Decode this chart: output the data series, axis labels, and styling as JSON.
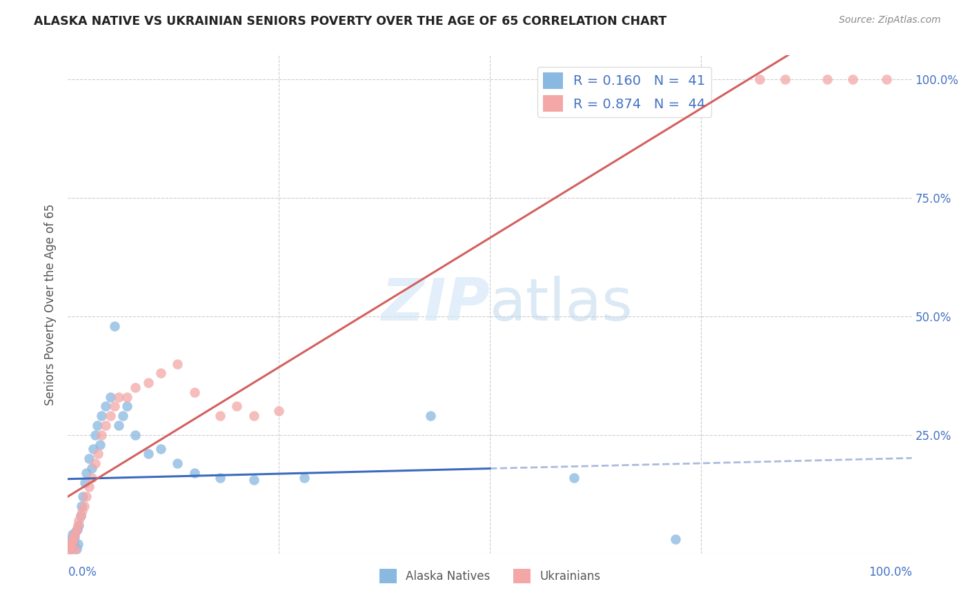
{
  "title": "ALASKA NATIVE VS UKRAINIAN SENIORS POVERTY OVER THE AGE OF 65 CORRELATION CHART",
  "source": "Source: ZipAtlas.com",
  "ylabel": "Seniors Poverty Over the Age of 65",
  "alaska_R": 0.16,
  "alaska_N": 41,
  "ukraine_R": 0.874,
  "ukraine_N": 44,
  "alaska_color": "#89b8e0",
  "ukraine_color": "#f4a7a7",
  "alaska_line_color": "#3a6abf",
  "ukraine_line_color": "#d45f5f",
  "dashed_line_color": "#aabbdd",
  "watermark_color": "#d0e4f5",
  "background_color": "#ffffff",
  "grid_color": "#cccccc",
  "title_color": "#222222",
  "axis_label_color": "#4472c4",
  "ylabel_color": "#555555",
  "legend_label_color": "#333355",
  "source_color": "#888888",
  "alaska_x": [
    0.002,
    0.003,
    0.004,
    0.005,
    0.006,
    0.007,
    0.008,
    0.009,
    0.01,
    0.011,
    0.012,
    0.013,
    0.015,
    0.016,
    0.018,
    0.02,
    0.022,
    0.025,
    0.028,
    0.03,
    0.032,
    0.035,
    0.038,
    0.04,
    0.045,
    0.05,
    0.055,
    0.06,
    0.065,
    0.07,
    0.08,
    0.095,
    0.11,
    0.13,
    0.15,
    0.18,
    0.22,
    0.28,
    0.43,
    0.6,
    0.72
  ],
  "alaska_y": [
    0.01,
    0.02,
    0.03,
    0.04,
    0.015,
    0.025,
    0.035,
    0.045,
    0.01,
    0.05,
    0.02,
    0.06,
    0.08,
    0.1,
    0.12,
    0.15,
    0.17,
    0.2,
    0.18,
    0.22,
    0.25,
    0.27,
    0.23,
    0.29,
    0.31,
    0.33,
    0.48,
    0.27,
    0.29,
    0.31,
    0.25,
    0.21,
    0.22,
    0.19,
    0.17,
    0.16,
    0.155,
    0.16,
    0.29,
    0.16,
    0.03
  ],
  "ukraine_x": [
    0.001,
    0.002,
    0.003,
    0.004,
    0.005,
    0.006,
    0.007,
    0.008,
    0.009,
    0.01,
    0.012,
    0.013,
    0.015,
    0.017,
    0.019,
    0.022,
    0.025,
    0.028,
    0.032,
    0.036,
    0.04,
    0.045,
    0.05,
    0.055,
    0.06,
    0.07,
    0.08,
    0.095,
    0.11,
    0.13,
    0.15,
    0.18,
    0.2,
    0.22,
    0.25,
    0.6,
    0.62,
    0.7,
    0.75,
    0.82,
    0.85,
    0.9,
    0.93,
    0.97
  ],
  "ukraine_y": [
    0.005,
    0.01,
    0.015,
    0.02,
    0.025,
    0.03,
    0.035,
    0.04,
    0.008,
    0.05,
    0.06,
    0.07,
    0.08,
    0.09,
    0.1,
    0.12,
    0.14,
    0.16,
    0.19,
    0.21,
    0.25,
    0.27,
    0.29,
    0.31,
    0.33,
    0.33,
    0.35,
    0.36,
    0.38,
    0.4,
    0.34,
    0.29,
    0.31,
    0.29,
    0.3,
    1.0,
    1.0,
    1.0,
    1.0,
    1.0,
    1.0,
    1.0,
    1.0,
    1.0
  ],
  "xlim": [
    0.0,
    1.0
  ],
  "ylim": [
    0.0,
    1.05
  ],
  "grid_yticks": [
    0.25,
    0.5,
    0.75,
    1.0
  ],
  "grid_xticks": [
    0.25,
    0.5,
    0.75
  ]
}
